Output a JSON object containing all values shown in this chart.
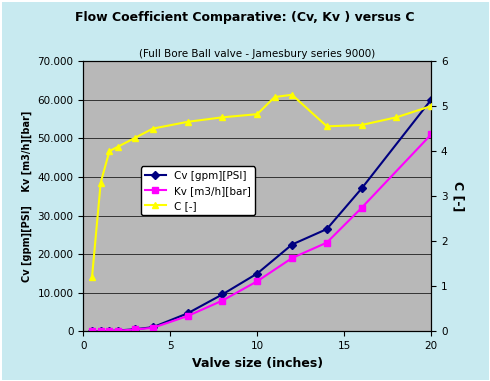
{
  "title": "Flow Coefficient Comparative: (Cv, Kv ) versus C",
  "subtitle": "(Full Bore Ball valve - Jamesbury series 9000)",
  "xlabel": "Valve size (inches)",
  "ylabel_left": "Cv [gpm][PSI]    Kv [m3/h][bar]",
  "ylabel_right": "C [-]",
  "background_color": "#c8eaf0",
  "plot_bg_color": "#b8b8b8",
  "x_Cv": [
    0.5,
    1.0,
    1.5,
    2.0,
    3.0,
    4.0,
    6.0,
    8.0,
    10.0,
    12.0,
    14.0,
    16.0,
    20.0
  ],
  "y_Cv": [
    0,
    40,
    130,
    250,
    600,
    1100,
    4700,
    9600,
    15000,
    22500,
    26500,
    37000,
    60000
  ],
  "x_Kv": [
    0.5,
    1.0,
    1.5,
    2.0,
    3.0,
    4.0,
    6.0,
    8.0,
    10.0,
    12.0,
    14.0,
    16.0,
    20.0
  ],
  "y_Kv": [
    0,
    35,
    110,
    200,
    520,
    950,
    4000,
    8000,
    13000,
    19000,
    23000,
    32000,
    51000
  ],
  "x_C": [
    0.5,
    1.0,
    1.5,
    2.0,
    3.0,
    4.0,
    6.0,
    8.0,
    10.0,
    11.0,
    12.0,
    14.0,
    16.0,
    18.0,
    20.0
  ],
  "y_C": [
    1.2,
    3.3,
    4.0,
    4.1,
    4.3,
    4.5,
    4.65,
    4.75,
    4.82,
    5.2,
    5.25,
    4.55,
    4.58,
    4.75,
    5.0
  ],
  "Cv_color": "#000080",
  "Kv_color": "#ff00ff",
  "C_color": "#ffff00",
  "ylim_left": [
    0,
    70000
  ],
  "ylim_right": [
    0,
    6
  ],
  "xlim": [
    0,
    20
  ],
  "yticks_left": [
    0,
    10000,
    20000,
    30000,
    40000,
    50000,
    60000,
    70000
  ],
  "yticks_right": [
    0,
    1,
    2,
    3,
    4,
    5,
    6
  ],
  "xticks": [
    0,
    5,
    10,
    15,
    20
  ],
  "legend_labels": [
    "Cv [gpm][PSI]",
    "Kv [m3/h][bar]",
    "C [-]"
  ]
}
